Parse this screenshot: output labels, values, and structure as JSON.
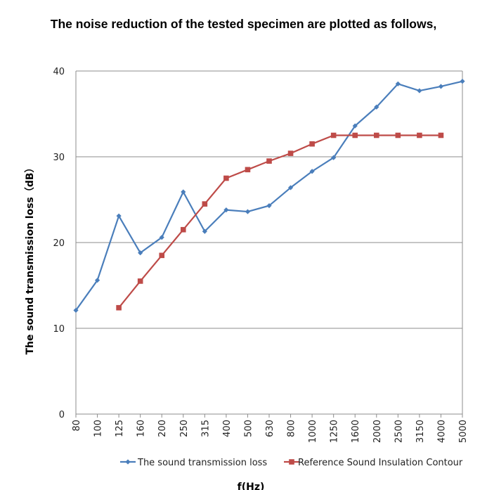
{
  "chart_data": {
    "type": "line",
    "title": "The noise reduction of the tested specimen are plotted as follows,",
    "ylabel": "The sound transmission loss（dB）",
    "xlabel": "f(Hz)",
    "ylim": [
      0,
      40
    ],
    "yticks": [
      "0",
      "10",
      "20",
      "30",
      "40"
    ],
    "grid": true,
    "legend_position": "bottom",
    "categories": [
      "80",
      "100",
      "125",
      "160",
      "200",
      "250",
      "315",
      "400",
      "500",
      "630",
      "800",
      "1000",
      "1250",
      "1600",
      "2000",
      "2500",
      "3150",
      "4000",
      "5000"
    ],
    "series": [
      {
        "name": "The sound transmission loss",
        "color": "#4a7ebb",
        "marker": "diamond",
        "values": [
          12.1,
          15.6,
          23.1,
          18.8,
          20.6,
          25.9,
          21.3,
          23.8,
          23.6,
          24.3,
          26.4,
          28.3,
          29.9,
          33.6,
          35.8,
          38.5,
          37.7,
          38.2,
          38.8
        ]
      },
      {
        "name": "Reference Sound Insulation Contour",
        "color": "#be4b48",
        "marker": "square",
        "values": [
          null,
          null,
          12.4,
          15.5,
          18.5,
          21.5,
          24.5,
          27.5,
          28.5,
          29.5,
          30.4,
          31.5,
          32.5,
          32.5,
          32.5,
          32.5,
          32.5,
          32.5,
          null
        ]
      }
    ]
  }
}
